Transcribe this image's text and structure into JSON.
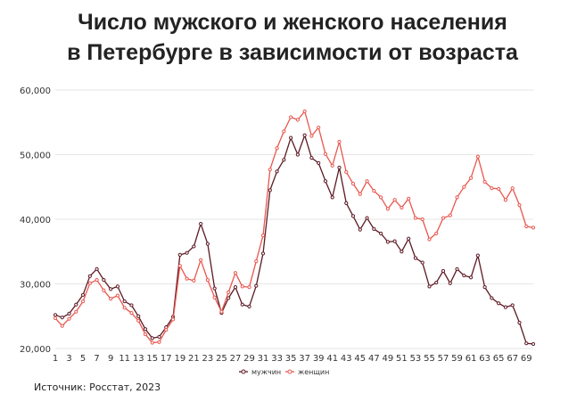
{
  "title_line1": "Число мужского и женского населения",
  "title_line2": "в Петербурге в зависимости от возраста",
  "source": "Источник: Росстат, 2023",
  "colors": {
    "male": "#5c1a24",
    "female": "#e8574f",
    "grid": "#e6e6e6",
    "text": "#333333"
  },
  "chart_data": {
    "type": "line",
    "title": "Число мужского и женского населения в Петербурге в зависимости от возраста",
    "xlabel": "",
    "ylabel": "",
    "ylim": [
      20000,
      60000
    ],
    "yticks": [
      20000,
      30000,
      40000,
      50000,
      60000
    ],
    "ytick_labels": [
      "20,000",
      "30,000",
      "40,000",
      "50,000",
      "60,000"
    ],
    "xticks": [
      1,
      3,
      5,
      7,
      9,
      11,
      13,
      15,
      17,
      19,
      21,
      23,
      25,
      27,
      29,
      31,
      33,
      35,
      37,
      39,
      41,
      43,
      45,
      47,
      49,
      51,
      53,
      55,
      57,
      59,
      61,
      63,
      65,
      67,
      69
    ],
    "grid": true,
    "legend_position": "bottom",
    "x": [
      1,
      2,
      3,
      4,
      5,
      6,
      7,
      8,
      9,
      10,
      11,
      12,
      13,
      14,
      15,
      16,
      17,
      18,
      19,
      20,
      21,
      22,
      23,
      24,
      25,
      26,
      27,
      28,
      29,
      30,
      31,
      32,
      33,
      34,
      35,
      36,
      37,
      38,
      39,
      40,
      41,
      42,
      43,
      44,
      45,
      46,
      47,
      48,
      49,
      50,
      51,
      52,
      53,
      54,
      55,
      56,
      57,
      58,
      59,
      60,
      61,
      62,
      63,
      64,
      65,
      66,
      67,
      68,
      69,
      70
    ],
    "series": [
      {
        "name": "мужчин",
        "values": [
          25200,
          24800,
          25400,
          26800,
          28300,
          31200,
          32300,
          30600,
          29200,
          29600,
          27300,
          26700,
          25000,
          23000,
          21600,
          21800,
          23300,
          24900,
          34500,
          34800,
          35800,
          39300,
          36200,
          29300,
          25500,
          27800,
          29500,
          26800,
          26500,
          29700,
          34700,
          44500,
          47400,
          49200,
          52600,
          50000,
          53000,
          49500,
          48700,
          45900,
          43400,
          48000,
          42500,
          40500,
          38400,
          40200,
          38500,
          37800,
          36500,
          36600,
          35000,
          37000,
          34000,
          33300,
          29600,
          30200,
          32000,
          30100,
          32300,
          31300,
          31000,
          34400,
          29500,
          27800,
          27000,
          26400,
          26700,
          24000,
          20800,
          20700
        ]
      },
      {
        "name": "женщин",
        "values": [
          24700,
          23500,
          24600,
          25700,
          27300,
          30100,
          30600,
          29000,
          27700,
          28200,
          26300,
          25500,
          24300,
          22200,
          20900,
          21000,
          22900,
          24500,
          32800,
          30800,
          30500,
          33700,
          30600,
          27900,
          25700,
          28700,
          31700,
          29600,
          29500,
          33500,
          37500,
          47700,
          51000,
          53600,
          55800,
          55400,
          56700,
          52900,
          54200,
          50100,
          48300,
          52000,
          47300,
          45500,
          43900,
          45900,
          44400,
          43400,
          41600,
          43000,
          41800,
          43200,
          40200,
          40000,
          36900,
          37800,
          40200,
          40600,
          43400,
          45000,
          46400,
          49700,
          45800,
          44800,
          44700,
          43000,
          44800,
          42200,
          38900,
          38700
        ]
      }
    ]
  }
}
